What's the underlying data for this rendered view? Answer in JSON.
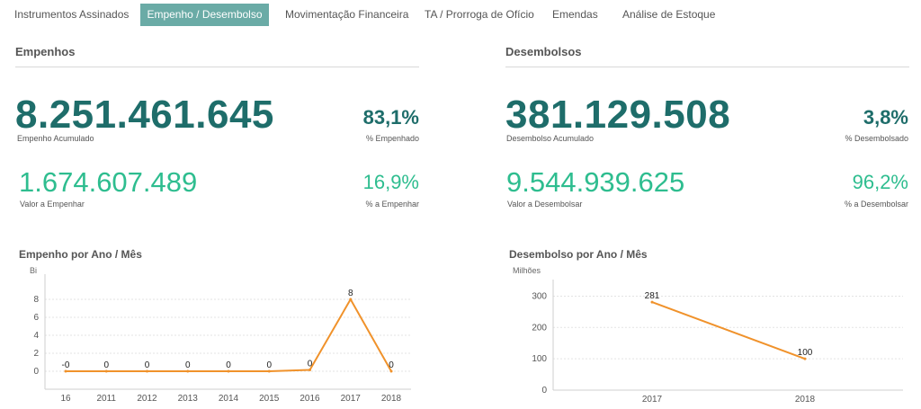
{
  "tabs": [
    {
      "label": "Instrumentos Assinados",
      "active": false
    },
    {
      "label": "Empenho / Desembolso",
      "active": true
    },
    {
      "label": "Movimentação Financeira",
      "active": false
    },
    {
      "label": "TA / Prorroga de Ofício",
      "active": false
    },
    {
      "label": "Emendas",
      "active": false
    },
    {
      "label": "Análise de Estoque",
      "active": false
    }
  ],
  "colors": {
    "accent_tab": "#6aaba6",
    "dark_teal": "#1e6d6a",
    "green": "#2ebd8f",
    "line": "#f0922b"
  },
  "empenhos": {
    "title": "Empenhos",
    "main_value": "8.251.461.645",
    "main_label": "Empenho Acumulado",
    "main_pct": "83,1%",
    "main_pct_label": "% Empenhado",
    "sec_value": "1.674.607.489",
    "sec_label": "Valor a Empenhar",
    "sec_pct": "16,9%",
    "sec_pct_label": "% a Empenhar"
  },
  "desembolsos": {
    "title": "Desembolsos",
    "main_value": "381.129.508",
    "main_label": "Desembolso Acumulado",
    "main_pct": "3,8%",
    "main_pct_label": "% Desembolsado",
    "sec_value": "9.544.939.625",
    "sec_label": "Valor a Desembolsar",
    "sec_pct": "96,2%",
    "sec_pct_label": "% a Desembolsar"
  },
  "chart_data": [
    {
      "type": "line",
      "title": "Empenho por Ano / Mês",
      "unit": "Bi",
      "x": [
        "16",
        "2011",
        "2012",
        "2013",
        "2014",
        "2015",
        "2016",
        "2017",
        "2018"
      ],
      "values": [
        0,
        0,
        0,
        0,
        0,
        0,
        0.15,
        8,
        0
      ],
      "data_labels": [
        "-0",
        "0",
        "0",
        "0",
        "0",
        "0",
        "0",
        "8",
        "0"
      ],
      "yticks": [
        0,
        2,
        4,
        6,
        8
      ],
      "ylim": [
        -2,
        10
      ],
      "grid": true
    },
    {
      "type": "line",
      "title": "Desembolso por Ano / Mês",
      "unit": "Milhões",
      "x": [
        "2017",
        "2018"
      ],
      "values": [
        281,
        100
      ],
      "data_labels": [
        "281",
        "100"
      ],
      "yticks": [
        0,
        100,
        200,
        300
      ],
      "ylim": [
        0,
        330
      ],
      "grid": true
    }
  ]
}
